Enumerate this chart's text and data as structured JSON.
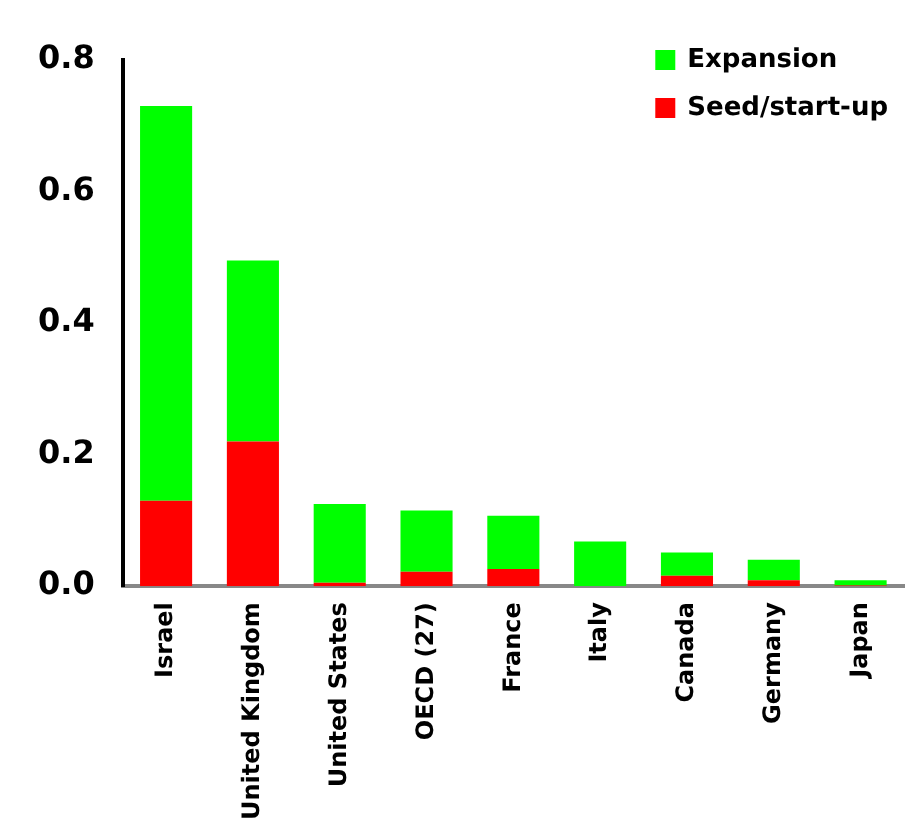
{
  "chart_data": {
    "type": "bar",
    "stacked": true,
    "categories": [
      "Israel",
      "United Kingdom",
      "United States",
      "OECD (27)",
      "France",
      "Italy",
      "Canada",
      "Germany",
      "Japan"
    ],
    "series": [
      {
        "name": "Seed/start-up",
        "color": "#ff0000",
        "values": [
          0.13,
          0.22,
          0.005,
          0.022,
          0.026,
          0,
          0.016,
          0.009,
          0.001
        ]
      },
      {
        "name": "Expansion",
        "color": "#00ff00",
        "values": [
          0.6,
          0.275,
          0.12,
          0.093,
          0.081,
          0.068,
          0.035,
          0.031,
          0.008
        ]
      }
    ],
    "ylim": [
      0,
      0.8
    ],
    "yticks": [
      {
        "value": 0,
        "label": "0.0"
      },
      {
        "value": 0.2,
        "label": "0.2"
      },
      {
        "value": 0.4,
        "label": "0.4"
      },
      {
        "value": 0.6,
        "label": "0.6"
      },
      {
        "value": 0.8,
        "label": "0.8"
      }
    ],
    "grid": false,
    "legend": "top right"
  }
}
